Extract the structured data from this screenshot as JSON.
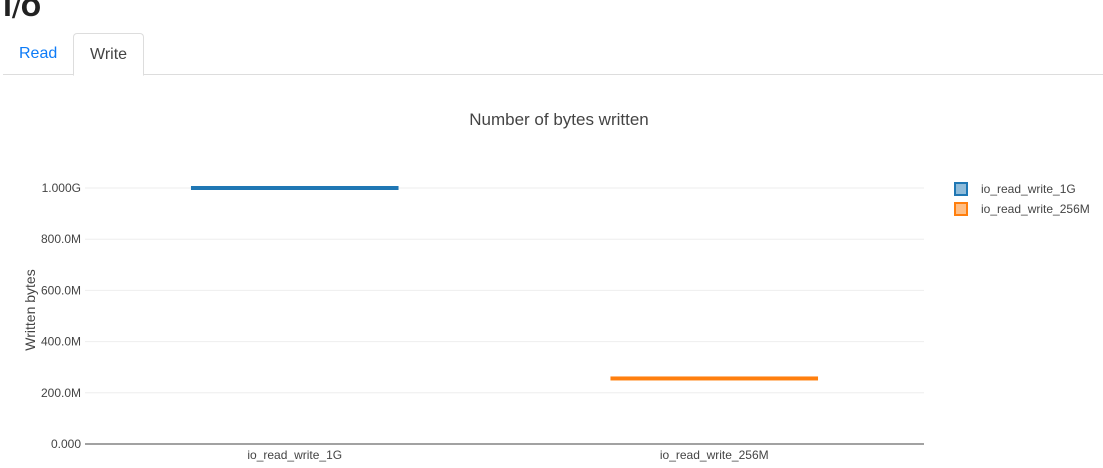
{
  "page_title": "I/O",
  "tabs": [
    {
      "label": "Read",
      "active": false
    },
    {
      "label": "Write",
      "active": true
    }
  ],
  "chart_data": {
    "type": "box",
    "title": "Number of bytes written",
    "xlabel": "",
    "ylabel": "Written bytes",
    "categories": [
      "io_read_write_1G",
      "io_read_write_256M"
    ],
    "series": [
      {
        "name": "io_read_write_1G",
        "category": "io_read_write_1G",
        "values": [
          1000000000
        ],
        "color": "#1f77b4"
      },
      {
        "name": "io_read_write_256M",
        "category": "io_read_write_256M",
        "values": [
          256000000
        ],
        "color": "#ff7f0e"
      }
    ],
    "ylim": [
      0,
      1000000000
    ],
    "yticks": [
      0,
      200000000,
      400000000,
      600000000,
      800000000,
      1000000000
    ],
    "ytick_labels": [
      "0.000",
      "200.0M",
      "400.0M",
      "600.0M",
      "800.0M",
      "1.000G"
    ],
    "grid": true,
    "legend": "top-right"
  }
}
